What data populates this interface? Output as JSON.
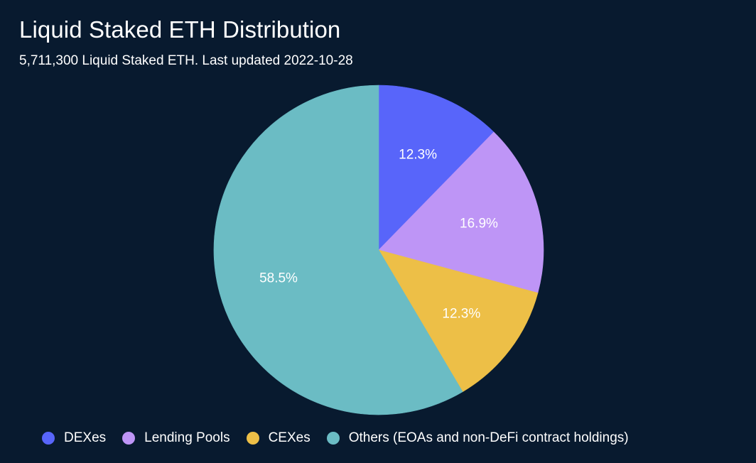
{
  "chart_data": {
    "type": "pie",
    "title": "Liquid Staked ETH Distribution",
    "subtitle": "5,711,300 Liquid Staked ETH. Last updated 2022-10-28",
    "categories": [
      "DEXes",
      "Lending Pools",
      "CEXes",
      "Others (EOAs and non-DeFi contract holdings)"
    ],
    "values": [
      12.3,
      16.9,
      12.3,
      58.5
    ],
    "labels": [
      "12.3%",
      "16.9%",
      "12.3%",
      "58.5%"
    ],
    "colors": [
      "#5865fa",
      "#be95f6",
      "#edbf47",
      "#6bbcc4"
    ],
    "legend_position": "bottom"
  }
}
